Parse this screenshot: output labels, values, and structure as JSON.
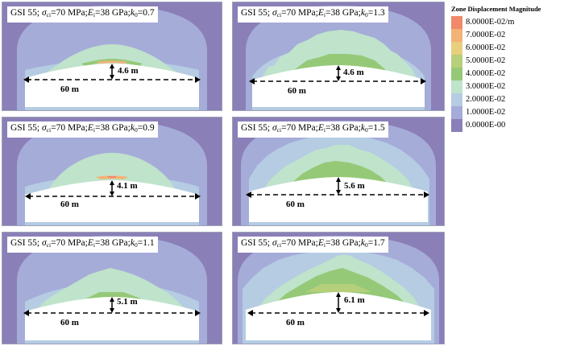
{
  "legend": {
    "title": "Zone Displacement Magnitude",
    "entries": [
      {
        "label": "8.0000E-02/m",
        "color": "#f08a6a"
      },
      {
        "label": "7.0000E-02",
        "color": "#f3b276"
      },
      {
        "label": "6.0000E-02",
        "color": "#e7cf7d"
      },
      {
        "label": "5.0000E-02",
        "color": "#b6cf7a"
      },
      {
        "label": "4.0000E-02",
        "color": "#95c978"
      },
      {
        "label": "3.0000E-02",
        "color": "#bfe3cb"
      },
      {
        "label": "2.0000E-02",
        "color": "#b5cce3"
      },
      {
        "label": "1.0000E-02",
        "color": "#a5acd8"
      },
      {
        "label": "0.0000E-00",
        "color": "#8b7fb8"
      }
    ]
  },
  "panels": [
    {
      "gsi": "GSI 55;",
      "sci_symbol": "σ",
      "sci_sub": "ci",
      "sci_value": "=70 MPa;",
      "ei_symbol": "E",
      "ei_sub": "i",
      "ei_value": "=38 GPa;",
      "k_symbol": "k",
      "k_sub": "0",
      "k_value": "=0.7",
      "height": "4.6 m",
      "width": "60 m",
      "k0": 0.7,
      "loosened_height_m": 4.6
    },
    {
      "gsi": "GSI 55;",
      "sci_symbol": "σ",
      "sci_sub": "ci",
      "sci_value": "=70 MPa;",
      "ei_symbol": "E",
      "ei_sub": "i",
      "ei_value": "=38 GPa;",
      "k_symbol": "k",
      "k_sub": "0",
      "k_value": "=1.3",
      "height": "4.6 m",
      "width": "60 m",
      "k0": 1.3,
      "loosened_height_m": 4.6
    },
    {
      "gsi": "GSI 55;",
      "sci_symbol": "σ",
      "sci_sub": "ci",
      "sci_value": "=70 MPa;",
      "ei_symbol": "E",
      "ei_sub": "i",
      "ei_value": "=38 GPa;",
      "k_symbol": "k",
      "k_sub": "0",
      "k_value": "=0.9",
      "height": "4.1 m",
      "width": "60 m",
      "k0": 0.9,
      "loosened_height_m": 4.1
    },
    {
      "gsi": "GSI 55;",
      "sci_symbol": "σ",
      "sci_sub": "ci",
      "sci_value": "=70 MPa;",
      "ei_symbol": "E",
      "ei_sub": "i",
      "ei_value": "=38 GPa;",
      "k_symbol": "k",
      "k_sub": "0",
      "k_value": "=1.5",
      "height": "5.6 m",
      "width": "60 m",
      "k0": 1.5,
      "loosened_height_m": 5.6
    },
    {
      "gsi": "GSI 55;",
      "sci_symbol": "σ",
      "sci_sub": "ci",
      "sci_value": "=70 MPa;",
      "ei_symbol": "E",
      "ei_sub": "i",
      "ei_value": "=38 GPa;",
      "k_symbol": "k",
      "k_sub": "0",
      "k_value": "=1.1",
      "height": "5.1 m",
      "width": "60 m",
      "k0": 1.1,
      "loosened_height_m": 5.1
    },
    {
      "gsi": "GSI 55;",
      "sci_symbol": "σ",
      "sci_sub": "ci",
      "sci_value": "=70 MPa;",
      "ei_symbol": "E",
      "ei_sub": "i",
      "ei_value": "=38 GPa;",
      "k_symbol": "k",
      "k_sub": "0",
      "k_value": "=1.7",
      "height": "6.1 m",
      "width": "60 m",
      "k0": 1.7,
      "loosened_height_m": 6.1
    }
  ]
}
